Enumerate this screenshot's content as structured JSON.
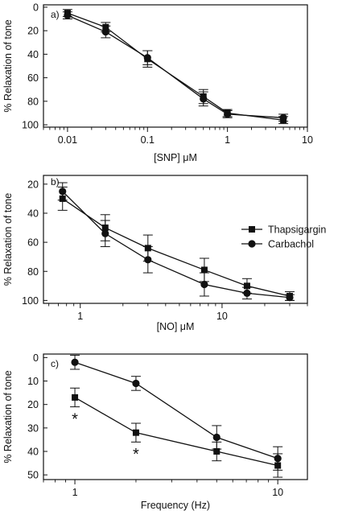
{
  "chart_data": [
    {
      "panel_label": "a)",
      "type": "line",
      "x_scale": "log",
      "xlabel": "[SNP] μM",
      "ylabel": "% Relaxation of tone",
      "xlim": [
        0.005,
        10
      ],
      "ylim": [
        -2,
        102
      ],
      "y_inverted": true,
      "x_ticks": [
        0.01,
        0.1,
        1,
        10
      ],
      "x_tick_labels": [
        "0.01",
        "0.1",
        "1",
        "10"
      ],
      "y_ticks": [
        0,
        20,
        40,
        60,
        80,
        100
      ],
      "y_tick_labels": [
        "0",
        "20",
        "40",
        "60",
        "80",
        "100"
      ],
      "legend": "",
      "series": [
        {
          "marker": "square",
          "x": [
            0.01,
            0.03,
            0.1,
            0.5,
            1,
            5
          ],
          "y": [
            5,
            17,
            44,
            76,
            90,
            96
          ],
          "err": [
            3,
            4,
            7,
            6,
            3,
            3
          ]
        },
        {
          "marker": "circle",
          "x": [
            0.01,
            0.03,
            0.1,
            0.5,
            1,
            5
          ],
          "y": [
            7,
            21,
            43,
            78,
            91,
            94
          ],
          "err": [
            3,
            5,
            6,
            6,
            3,
            3
          ]
        }
      ]
    },
    {
      "panel_label": "b)",
      "type": "line",
      "x_scale": "log",
      "xlabel": "[NO] μM",
      "ylabel": "% Relaxation of tone",
      "xlim": [
        0.55,
        40
      ],
      "ylim": [
        14,
        102
      ],
      "y_inverted": true,
      "x_ticks": [
        1,
        10
      ],
      "x_tick_labels": [
        "1",
        "10"
      ],
      "y_ticks": [
        20,
        40,
        60,
        80,
        100
      ],
      "y_tick_labels": [
        "20",
        "40",
        "60",
        "80",
        "100"
      ],
      "legend": "right",
      "series": [
        {
          "name": "Thapsigargin",
          "marker": "square",
          "x": [
            0.75,
            1.5,
            3,
            7.5,
            15,
            30
          ],
          "y": [
            30,
            50,
            64,
            79,
            90,
            97
          ],
          "err": [
            8,
            9,
            9,
            8,
            5,
            3
          ]
        },
        {
          "name": "Carbachol",
          "marker": "circle",
          "x": [
            0.75,
            1.5,
            3,
            7.5,
            15,
            30
          ],
          "y": [
            25,
            54,
            72,
            89,
            95,
            98
          ],
          "err": [
            6,
            9,
            9,
            8,
            4,
            2
          ]
        }
      ]
    },
    {
      "panel_label": "c)",
      "type": "line",
      "x_scale": "log",
      "xlabel": "Frequency (Hz)",
      "ylabel": "% Relaxation of tone",
      "xlim": [
        0.7,
        14
      ],
      "ylim": [
        -1.5,
        52
      ],
      "y_inverted": true,
      "x_ticks": [
        1,
        10
      ],
      "x_tick_labels": [
        "1",
        "10"
      ],
      "y_ticks": [
        0,
        10,
        20,
        30,
        40,
        50
      ],
      "y_tick_labels": [
        "0",
        "10",
        "20",
        "30",
        "40",
        "50"
      ],
      "legend": "",
      "series": [
        {
          "marker": "square",
          "x": [
            1,
            2,
            5,
            10
          ],
          "y": [
            17,
            32,
            40,
            46
          ],
          "err": [
            4,
            4,
            4,
            5
          ]
        },
        {
          "marker": "circle",
          "x": [
            1,
            2,
            5,
            10
          ],
          "y": [
            2,
            11,
            34,
            43
          ],
          "err": [
            3,
            3,
            5,
            5
          ]
        }
      ],
      "annotations": [
        {
          "text": "*",
          "x": 1,
          "y": 25
        },
        {
          "text": "*",
          "x": 2,
          "y": 40
        }
      ]
    }
  ]
}
